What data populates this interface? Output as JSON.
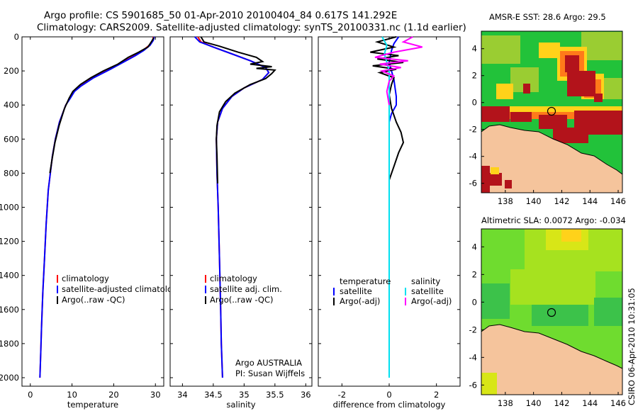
{
  "header": {
    "line1": "Argo profile: CS 5901685_50 01-Apr-2010 20100404_84 0.617S 141.292E",
    "line2": "Climatology: CARS2009. Satellite-adjusted climatology: synTS_20100331.nc (1.1d earlier)"
  },
  "side_label": "CSIRO 06-Apr-2010 10:31:05",
  "chart_data": [
    {
      "id": "temperature",
      "type": "line",
      "xlabel": "temperature",
      "ylabel": "",
      "xlim": [
        -2,
        32
      ],
      "ylim": [
        2050,
        0
      ],
      "xticks": [
        0,
        10,
        20,
        30
      ],
      "yticks": [
        0,
        200,
        400,
        600,
        800,
        1000,
        1200,
        1400,
        1600,
        1800,
        2000
      ],
      "legend": {
        "position": "lower-right",
        "entries": [
          "climatology",
          "satellite-adjusted climatology",
          "Argo(..raw -QC)"
        ]
      },
      "series": [
        {
          "name": "climatology",
          "color": "#ff0000",
          "x": [
            29.5,
            29.4,
            28.5,
            27.0,
            25.0,
            22.0,
            19.0,
            15.0,
            12.0,
            10.5,
            9.5,
            8.5,
            7.0,
            6.0,
            5.3,
            4.8,
            4.3,
            3.8,
            3.4,
            3.0,
            2.7,
            2.5,
            2.3
          ],
          "y": [
            0,
            20,
            50,
            80,
            110,
            150,
            190,
            240,
            290,
            320,
            360,
            400,
            500,
            600,
            700,
            800,
            900,
            1100,
            1300,
            1500,
            1700,
            1850,
            2000
          ]
        },
        {
          "name": "satellite-adjusted climatology",
          "color": "#0000ff",
          "x": [
            29.7,
            29.5,
            28.7,
            27.2,
            25.2,
            22.2,
            19.2,
            15.2,
            12.1,
            10.6,
            9.6,
            8.5,
            7.0,
            6.0,
            5.3,
            4.8,
            4.3,
            3.8,
            3.4,
            3.0,
            2.7,
            2.5,
            2.3
          ],
          "y": [
            0,
            20,
            50,
            80,
            110,
            150,
            190,
            240,
            290,
            320,
            360,
            400,
            500,
            600,
            700,
            800,
            900,
            1100,
            1300,
            1500,
            1700,
            1850,
            2000
          ]
        },
        {
          "name": "Argo(..raw -QC)",
          "color": "#000000",
          "x": [
            29.6,
            29.0,
            28.2,
            26.0,
            23.5,
            21.0,
            17.5,
            14.5,
            12.0,
            10.2,
            9.3,
            8.2,
            6.9,
            5.9,
            5.2,
            4.7
          ],
          "y": [
            5,
            30,
            60,
            90,
            120,
            160,
            200,
            240,
            280,
            320,
            360,
            420,
            520,
            620,
            720,
            800
          ]
        }
      ]
    },
    {
      "id": "salinity",
      "type": "line",
      "xlabel": "salinity",
      "ylabel": "",
      "xlim": [
        33.8,
        36.1
      ],
      "ylim": [
        2050,
        0
      ],
      "xticks": [
        34,
        34.5,
        35,
        35.5,
        36
      ],
      "xtick_labels": [
        "34",
        "34.5",
        "35",
        "35.5",
        "36"
      ],
      "legend": {
        "position": "lower-right",
        "entries": [
          "climatology",
          "satellite adj. clim.",
          "Argo(..raw -QC)"
        ]
      },
      "annotations": [
        "Argo AUSTRALIA",
        "PI: Susan Wijffels"
      ],
      "series": [
        {
          "name": "climatology",
          "color": "#ff0000",
          "x": [
            34.25,
            34.3,
            34.5,
            34.8,
            35.1,
            35.35,
            35.4,
            35.3,
            35.0,
            34.8,
            34.65,
            34.57,
            34.55,
            34.56,
            34.58,
            34.6,
            34.62,
            34.63,
            34.65
          ],
          "y": [
            0,
            30,
            60,
            100,
            140,
            180,
            210,
            250,
            300,
            350,
            420,
            500,
            600,
            800,
            1000,
            1300,
            1600,
            1800,
            2000
          ]
        },
        {
          "name": "satellite adj. clim.",
          "color": "#0000ff",
          "x": [
            34.2,
            34.28,
            34.5,
            34.8,
            35.1,
            35.35,
            35.4,
            35.3,
            35.0,
            34.8,
            34.65,
            34.57,
            34.55,
            34.56,
            34.58,
            34.6,
            34.62,
            34.63,
            34.65
          ],
          "y": [
            0,
            30,
            60,
            100,
            140,
            180,
            210,
            250,
            300,
            350,
            420,
            500,
            600,
            800,
            1000,
            1300,
            1600,
            1800,
            2000
          ]
        },
        {
          "name": "Argo(..raw -QC)",
          "color": "#000000",
          "x": [
            34.3,
            34.35,
            34.6,
            34.9,
            35.2,
            35.3,
            35.1,
            35.45,
            35.2,
            35.5,
            35.45,
            35.35,
            35.1,
            34.85,
            34.7,
            34.6,
            34.56,
            34.55,
            34.56,
            34.57
          ],
          "y": [
            0,
            30,
            55,
            90,
            120,
            145,
            160,
            175,
            185,
            195,
            215,
            245,
            280,
            330,
            380,
            440,
            520,
            600,
            700,
            860
          ]
        }
      ]
    },
    {
      "id": "difference",
      "type": "line",
      "xlabel": "difference from climatology",
      "ylabel": "",
      "xlim": [
        -3,
        3
      ],
      "ylim": [
        2050,
        0
      ],
      "xticks": [
        -2,
        0,
        2
      ],
      "legend": {
        "position": "lower-center",
        "columns": [
          [
            "temperature",
            "satellite",
            "Argo(-adj)"
          ],
          [
            "salinity",
            "satellite",
            "Argo(-adj)"
          ]
        ]
      },
      "series": [
        {
          "name": "temperature satellite",
          "color": "#0000ff",
          "x": [
            0.4,
            0.2,
            0.1,
            0.0,
            0.1,
            0.2,
            0.25,
            0.3,
            0.3,
            0.1,
            0.0,
            0.0,
            0.0,
            0.0,
            0.0,
            0.0,
            0.0
          ],
          "y": [
            0,
            40,
            80,
            150,
            200,
            250,
            300,
            350,
            400,
            450,
            500,
            700,
            900,
            1200,
            1500,
            1800,
            2000
          ]
        },
        {
          "name": "temperature Argo(-adj)",
          "color": "#000000",
          "x": [
            0.3,
            -0.5,
            0.2,
            -0.8,
            0.4,
            -0.5,
            0.6,
            -0.7,
            0.3,
            -0.4,
            0.2,
            0.1,
            0.0,
            0.1,
            0.3,
            0.5,
            0.6,
            0.4,
            0.2,
            0.0
          ],
          "y": [
            0,
            30,
            60,
            90,
            110,
            130,
            150,
            170,
            190,
            210,
            240,
            280,
            340,
            420,
            500,
            560,
            620,
            680,
            760,
            840
          ]
        },
        {
          "name": "salinity satellite",
          "color": "#00e0f0",
          "x": [
            -0.3,
            -0.1,
            -0.2,
            -0.1,
            0.0,
            0.0,
            0.0,
            0.0,
            0.0,
            0.0,
            0.0,
            0.0
          ],
          "y": [
            0,
            50,
            100,
            150,
            200,
            300,
            500,
            800,
            1100,
            1400,
            1700,
            2000
          ]
        },
        {
          "name": "salinity Argo(-adj)",
          "color": "#ff00ff",
          "x": [
            1.0,
            0.6,
            1.4,
            0.2,
            -0.6,
            0.8,
            -0.4,
            0.5,
            -0.3,
            0.2,
            0.0,
            -0.1,
            0.0
          ],
          "y": [
            0,
            30,
            60,
            90,
            120,
            140,
            160,
            180,
            200,
            230,
            260,
            320,
            400
          ]
        }
      ]
    },
    {
      "id": "sst-map",
      "type": "heatmap",
      "title": "AMSR-E SST: 28.6 Argo: 29.5",
      "xticks": [
        138,
        140,
        142,
        144,
        146
      ],
      "yticks": [
        4,
        2,
        0,
        -2,
        -4,
        -6
      ],
      "xlim": [
        136.3,
        146.3
      ],
      "ylim": [
        -6.7,
        5.3
      ],
      "marker": {
        "lon": 141.292,
        "lat": -0.617
      }
    },
    {
      "id": "sla-map",
      "type": "heatmap",
      "title": "Altimetric SLA: 0.0072 Argo: -0.034",
      "xticks": [
        138,
        140,
        142,
        144,
        146
      ],
      "yticks": [
        4,
        2,
        0,
        -2,
        -4,
        -6
      ],
      "xlim": [
        136.3,
        146.3
      ],
      "ylim": [
        -6.7,
        5.3
      ],
      "marker": {
        "lon": 141.292,
        "lat": -0.617
      }
    }
  ]
}
